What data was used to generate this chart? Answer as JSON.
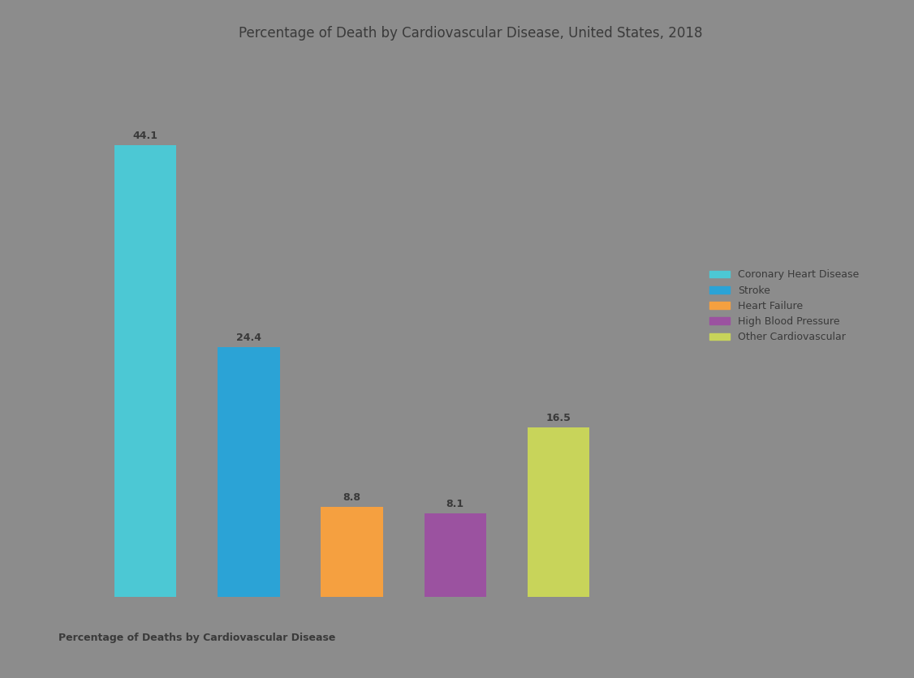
{
  "title": "Percentage of Death by Cardiovascular Disease, United States, 2018",
  "categories": [
    "Coronary Heart Disease",
    "Stroke",
    "Heart Failure",
    "High Blood Pressure",
    "Other Cardiovascular"
  ],
  "values": [
    44.1,
    24.4,
    8.8,
    8.1,
    16.5
  ],
  "bar_colors": [
    "#4CC8D4",
    "#2BA3D6",
    "#F5A040",
    "#9B52A0",
    "#C8D45A"
  ],
  "legend_labels": [
    "Coronary Heart Disease",
    "Stroke",
    "Heart Failure",
    "High Blood Pressure",
    "Other Cardiovascular"
  ],
  "background_color": "#8C8C8C",
  "bar_label_color": "#3A3A3A",
  "title_color": "#3A3A3A",
  "xlabel": "Percentage of Deaths by Cardiovascular Disease",
  "xlabel_color": "#3A3A3A",
  "title_fontsize": 12,
  "label_fontsize": 9,
  "legend_fontsize": 9,
  "bar_positions": [
    1,
    2,
    3,
    4,
    5
  ],
  "bar_width": 0.6,
  "xlim": [
    0.3,
    8.0
  ],
  "ylim": [
    0,
    53
  ]
}
